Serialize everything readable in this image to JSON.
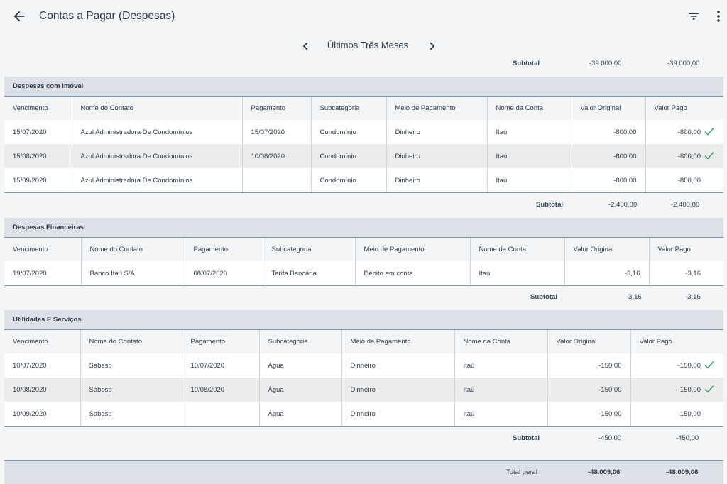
{
  "header": {
    "title": "Contas a Pagar (Despesas)",
    "back_icon": "arrow-left-icon",
    "filter_icon": "filter-icon",
    "more_icon": "more-vertical-icon"
  },
  "period": {
    "label": "Últimos Três Meses"
  },
  "top_subtotal": {
    "label": "Subtotal",
    "original": "-39.000,00",
    "paid": "-39.000,00"
  },
  "columns": [
    "Vencimento",
    "Nome do Contato",
    "Pagamento",
    "Subcategoria",
    "Meio de Pagamento",
    "Nome da Conta",
    "Valor Original",
    "Valor Pago"
  ],
  "sections": [
    {
      "title": "Despesas com Imóvel",
      "rows": [
        {
          "vencimento": "15/07/2020",
          "contato": "Azul Administradora De Condomínios",
          "pagamento": "15/07/2020",
          "subcategoria": "Condomínio",
          "meio": "Dinheiro",
          "conta": "Itaú",
          "original": "-800,00",
          "pago": "-800,00",
          "checked": true
        },
        {
          "vencimento": "15/08/2020",
          "contato": "Azul Administradora De Condomínios",
          "pagamento": "10/08/2020",
          "subcategoria": "Condomínio",
          "meio": "Dinheiro",
          "conta": "Itaú",
          "original": "-800,00",
          "pago": "-800,00",
          "checked": true
        },
        {
          "vencimento": "15/09/2020",
          "contato": "Azul Administradora De Condomínios",
          "pagamento": "",
          "subcategoria": "Condomínio",
          "meio": "Dinheiro",
          "conta": "Itaú",
          "original": "-800,00",
          "pago": "-800,00",
          "checked": false
        }
      ],
      "subtotal": {
        "label": "Subtotal",
        "original": "-2.400,00",
        "paid": "-2.400,00"
      }
    },
    {
      "title": "Despesas Financeiras",
      "rows": [
        {
          "vencimento": "19/07/2020",
          "contato": "Banco Itaú S/A",
          "pagamento": "08/07/2020",
          "subcategoria": "Tarifa Bancária",
          "meio": "Débito em conta",
          "conta": "Itaú",
          "original": "-3,16",
          "pago": "-3,16",
          "checked": false
        }
      ],
      "subtotal": {
        "label": "Subtotal",
        "original": "-3,16",
        "paid": "-3,16"
      }
    },
    {
      "title": "Utilidades E Serviços",
      "rows": [
        {
          "vencimento": "10/07/2020",
          "contato": "Sabesp",
          "pagamento": "10/07/2020",
          "subcategoria": "Água",
          "meio": "Dinheiro",
          "conta": "Itaú",
          "original": "-150,00",
          "pago": "-150,00",
          "checked": true
        },
        {
          "vencimento": "10/08/2020",
          "contato": "Sabesp",
          "pagamento": "10/08/2020",
          "subcategoria": "Água",
          "meio": "Dinheiro",
          "conta": "Itaú",
          "original": "-150,00",
          "pago": "-150,00",
          "checked": true
        },
        {
          "vencimento": "10/09/2020",
          "contato": "Sabesp",
          "pagamento": "",
          "subcategoria": "Água",
          "meio": "Dinheiro",
          "conta": "Itaú",
          "original": "-150,00",
          "pago": "-150,00",
          "checked": false
        }
      ],
      "subtotal": {
        "label": "Subtotal",
        "original": "-450,00",
        "paid": "-450,00"
      }
    }
  ],
  "total": {
    "label": "Total geral",
    "original": "-48.009,06",
    "paid": "-48.009,06"
  },
  "colors": {
    "check": "#3a9b6b",
    "section_bg": "#dde1e7",
    "row_alt": "#ececed",
    "rule": "#7896b6"
  }
}
